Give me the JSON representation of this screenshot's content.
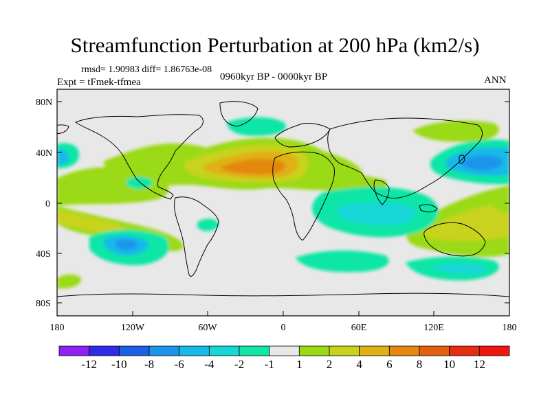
{
  "title": "Streamfunction Perturbation at 200 hPa (km2/s)",
  "stats": "rmsd= 1.90983 diff= 1.86763e-08",
  "expt": "Expt = tFmek-tfmea",
  "period": "0960kyr BP - 0000kyr BP",
  "season": "ANN",
  "lat_ticks": [
    "80N",
    "40N",
    "0",
    "40S",
    "80S"
  ],
  "lon_ticks": [
    "180",
    "120W",
    "60W",
    "0",
    "60E",
    "120E",
    "180"
  ],
  "colorbar": {
    "labels": [
      "-12",
      "-10",
      "-8",
      "-6",
      "-4",
      "-2",
      "-1",
      "1",
      "2",
      "4",
      "6",
      "8",
      "10",
      "12"
    ],
    "colors": [
      "#8f22f2",
      "#2f2be8",
      "#1c60e6",
      "#1c94ec",
      "#16b9e8",
      "#16d6d6",
      "#10e6a6",
      "#e8e8e8",
      "#9bda12",
      "#c9d21a",
      "#e0b016",
      "#e4880e",
      "#e26010",
      "#e52e0e",
      "#ee1610"
    ]
  },
  "colors": {
    "background": "#e8e8e8",
    "coast": "#000000"
  }
}
